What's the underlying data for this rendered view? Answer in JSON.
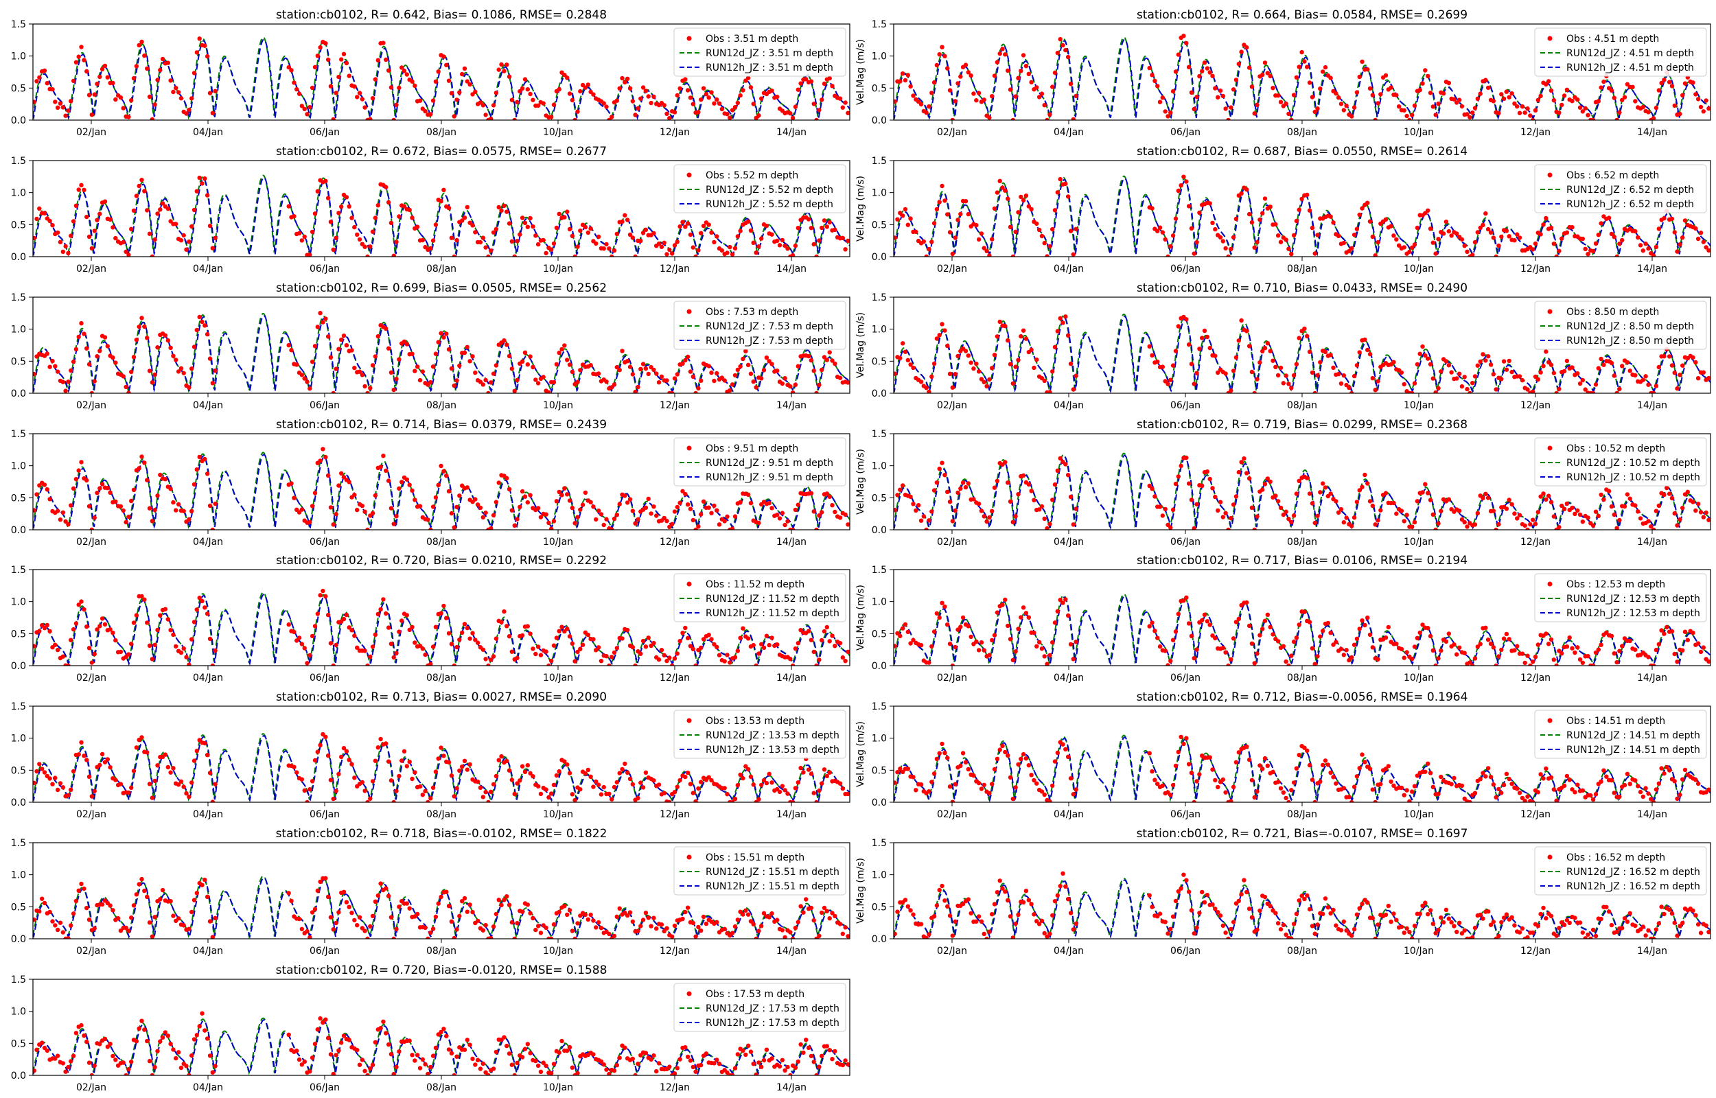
{
  "figure": {
    "x_tick_labels": [
      "02/Jan",
      "04/Jan",
      "06/Jan",
      "08/Jan",
      "10/Jan",
      "12/Jan",
      "14/Jan"
    ],
    "y_tick_labels": [
      "0.0",
      "0.5",
      "1.0",
      "1.5"
    ],
    "colors": {
      "obs": "#ff0000",
      "run12d": "#008000",
      "run12h": "#0000cc",
      "axes": "#000000"
    }
  },
  "chart_data": [
    {
      "type": "line",
      "title": "station:cb0102, R= 0.642, Bias= 0.1086, RMSE= 0.2848",
      "ylabel": "",
      "x_range_days": [
        1,
        15
      ],
      "ylim": [
        0,
        1.5
      ],
      "series": [
        {
          "name": "Obs : 3.51 m depth",
          "style": "scatter"
        },
        {
          "name": "RUN12d_JZ : 3.51 m depth",
          "style": "dashed"
        },
        {
          "name": "RUN12h_JZ : 3.51 m depth",
          "style": "dashed"
        }
      ],
      "amplitude": 1.0,
      "legend": "top-right"
    },
    {
      "type": "line",
      "title": "station:cb0102, R= 0.664, Bias= 0.0584, RMSE= 0.2699",
      "ylabel": "Vel.Mag (m/s)",
      "x_range_days": [
        1,
        15
      ],
      "ylim": [
        0,
        1.5
      ],
      "series": [
        {
          "name": "Obs : 4.51 m depth",
          "style": "scatter"
        },
        {
          "name": "RUN12d_JZ : 4.51 m depth",
          "style": "dashed"
        },
        {
          "name": "RUN12h_JZ : 4.51 m depth",
          "style": "dashed"
        }
      ],
      "amplitude": 1.0,
      "legend": "top-right"
    },
    {
      "type": "line",
      "title": "station:cb0102, R= 0.672, Bias= 0.0575, RMSE= 0.2677",
      "ylabel": "",
      "x_range_days": [
        1,
        15
      ],
      "ylim": [
        0,
        1.5
      ],
      "series": [
        {
          "name": "Obs : 5.52 m depth",
          "style": "scatter"
        },
        {
          "name": "RUN12d_JZ : 5.52 m depth",
          "style": "dashed"
        },
        {
          "name": "RUN12h_JZ : 5.52 m depth",
          "style": "dashed"
        }
      ],
      "amplitude": 0.98,
      "legend": "top-right"
    },
    {
      "type": "line",
      "title": "station:cb0102, R= 0.687, Bias= 0.0550, RMSE= 0.2614",
      "ylabel": "Vel.Mag (m/s)",
      "x_range_days": [
        1,
        15
      ],
      "ylim": [
        0,
        1.5
      ],
      "series": [
        {
          "name": "Obs : 6.52 m depth",
          "style": "scatter"
        },
        {
          "name": "RUN12d_JZ : 6.52 m depth",
          "style": "dashed"
        },
        {
          "name": "RUN12h_JZ : 6.52 m depth",
          "style": "dashed"
        }
      ],
      "amplitude": 0.97,
      "legend": "top-right"
    },
    {
      "type": "line",
      "title": "station:cb0102, R= 0.699, Bias= 0.0505, RMSE= 0.2562",
      "ylabel": "",
      "x_range_days": [
        1,
        15
      ],
      "ylim": [
        0,
        1.5
      ],
      "series": [
        {
          "name": "Obs : 7.53 m depth",
          "style": "scatter"
        },
        {
          "name": "RUN12d_JZ : 7.53 m depth",
          "style": "dashed"
        },
        {
          "name": "RUN12h_JZ : 7.53 m depth",
          "style": "dashed"
        }
      ],
      "amplitude": 0.96,
      "legend": "top-right"
    },
    {
      "type": "line",
      "title": "station:cb0102, R= 0.710, Bias= 0.0433, RMSE= 0.2490",
      "ylabel": "Vel.Mag (m/s)",
      "x_range_days": [
        1,
        15
      ],
      "ylim": [
        0,
        1.5
      ],
      "series": [
        {
          "name": "Obs : 8.50 m depth",
          "style": "scatter"
        },
        {
          "name": "RUN12d_JZ : 8.50 m depth",
          "style": "dashed"
        },
        {
          "name": "RUN12h_JZ : 8.50 m depth",
          "style": "dashed"
        }
      ],
      "amplitude": 0.95,
      "legend": "top-right"
    },
    {
      "type": "line",
      "title": "station:cb0102, R= 0.714, Bias= 0.0379, RMSE= 0.2439",
      "ylabel": "",
      "x_range_days": [
        1,
        15
      ],
      "ylim": [
        0,
        1.5
      ],
      "series": [
        {
          "name": "Obs : 9.51 m depth",
          "style": "scatter"
        },
        {
          "name": "RUN12d_JZ : 9.51 m depth",
          "style": "dashed"
        },
        {
          "name": "RUN12h_JZ : 9.51 m depth",
          "style": "dashed"
        }
      ],
      "amplitude": 0.93,
      "legend": "top-right"
    },
    {
      "type": "line",
      "title": "station:cb0102, R= 0.719, Bias= 0.0299, RMSE= 0.2368",
      "ylabel": "Vel.Mag (m/s)",
      "x_range_days": [
        1,
        15
      ],
      "ylim": [
        0,
        1.5
      ],
      "series": [
        {
          "name": "Obs : 10.52 m depth",
          "style": "scatter"
        },
        {
          "name": "RUN12d_JZ : 10.52 m depth",
          "style": "dashed"
        },
        {
          "name": "RUN12h_JZ : 10.52 m depth",
          "style": "dashed"
        }
      ],
      "amplitude": 0.92,
      "legend": "top-right"
    },
    {
      "type": "line",
      "title": "station:cb0102, R= 0.720, Bias= 0.0210, RMSE= 0.2292",
      "ylabel": "",
      "x_range_days": [
        1,
        15
      ],
      "ylim": [
        0,
        1.5
      ],
      "series": [
        {
          "name": "Obs : 11.52 m depth",
          "style": "scatter"
        },
        {
          "name": "RUN12d_JZ : 11.52 m depth",
          "style": "dashed"
        },
        {
          "name": "RUN12h_JZ : 11.52 m depth",
          "style": "dashed"
        }
      ],
      "amplitude": 0.88,
      "legend": "top-right"
    },
    {
      "type": "line",
      "title": "station:cb0102, R= 0.717, Bias= 0.0106, RMSE= 0.2194",
      "ylabel": "Vel.Mag (m/s)",
      "x_range_days": [
        1,
        15
      ],
      "ylim": [
        0,
        1.5
      ],
      "series": [
        {
          "name": "Obs : 12.53 m depth",
          "style": "scatter"
        },
        {
          "name": "RUN12d_JZ : 12.53 m depth",
          "style": "dashed"
        },
        {
          "name": "RUN12h_JZ : 12.53 m depth",
          "style": "dashed"
        }
      ],
      "amplitude": 0.86,
      "legend": "top-right"
    },
    {
      "type": "line",
      "title": "station:cb0102, R= 0.713, Bias= 0.0027, RMSE= 0.2090",
      "ylabel": "",
      "x_range_days": [
        1,
        15
      ],
      "ylim": [
        0,
        1.5
      ],
      "series": [
        {
          "name": "Obs : 13.53 m depth",
          "style": "scatter"
        },
        {
          "name": "RUN12d_JZ : 13.53 m depth",
          "style": "dashed"
        },
        {
          "name": "RUN12h_JZ : 13.53 m depth",
          "style": "dashed"
        }
      ],
      "amplitude": 0.82,
      "legend": "top-right"
    },
    {
      "type": "line",
      "title": "station:cb0102, R= 0.712, Bias=-0.0056, RMSE= 0.1964",
      "ylabel": "Vel.Mag (m/s)",
      "x_range_days": [
        1,
        15
      ],
      "ylim": [
        0,
        1.5
      ],
      "series": [
        {
          "name": "Obs : 14.51 m depth",
          "style": "scatter"
        },
        {
          "name": "RUN12d_JZ : 14.51 m depth",
          "style": "dashed"
        },
        {
          "name": "RUN12h_JZ : 14.51 m depth",
          "style": "dashed"
        }
      ],
      "amplitude": 0.8,
      "legend": "top-right"
    },
    {
      "type": "line",
      "title": "station:cb0102, R= 0.718, Bias=-0.0102, RMSE= 0.1822",
      "ylabel": "",
      "x_range_days": [
        1,
        15
      ],
      "ylim": [
        0,
        1.5
      ],
      "series": [
        {
          "name": "Obs : 15.51 m depth",
          "style": "scatter"
        },
        {
          "name": "RUN12d_JZ : 15.51 m depth",
          "style": "dashed"
        },
        {
          "name": "RUN12h_JZ : 15.51 m depth",
          "style": "dashed"
        }
      ],
      "amplitude": 0.75,
      "legend": "top-right"
    },
    {
      "type": "line",
      "title": "station:cb0102, R= 0.721, Bias=-0.0107, RMSE= 0.1697",
      "ylabel": "Vel.Mag (m/s)",
      "x_range_days": [
        1,
        15
      ],
      "ylim": [
        0,
        1.5
      ],
      "series": [
        {
          "name": "Obs : 16.52 m depth",
          "style": "scatter"
        },
        {
          "name": "RUN12d_JZ : 16.52 m depth",
          "style": "dashed"
        },
        {
          "name": "RUN12h_JZ : 16.52 m depth",
          "style": "dashed"
        }
      ],
      "amplitude": 0.72,
      "legend": "top-right"
    },
    {
      "type": "line",
      "title": "station:cb0102, R= 0.720, Bias=-0.0120, RMSE= 0.1588",
      "ylabel": "",
      "x_range_days": [
        1,
        15
      ],
      "ylim": [
        0,
        1.5
      ],
      "series": [
        {
          "name": "Obs : 17.53 m depth",
          "style": "scatter"
        },
        {
          "name": "RUN12d_JZ : 17.53 m depth",
          "style": "dashed"
        },
        {
          "name": "RUN12h_JZ : 17.53 m depth",
          "style": "dashed"
        }
      ],
      "amplitude": 0.68,
      "legend": "top-right"
    }
  ]
}
